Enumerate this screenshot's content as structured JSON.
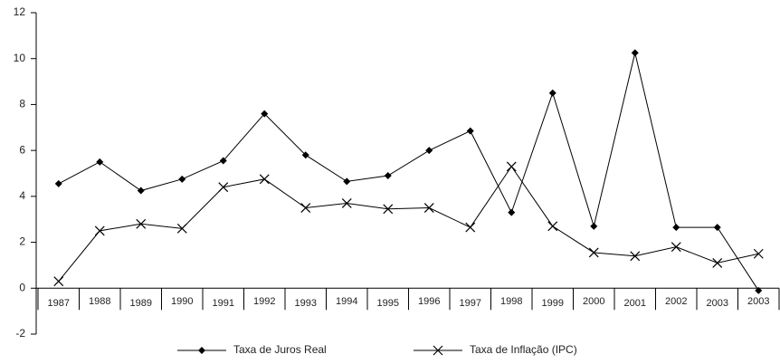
{
  "chart_data": {
    "type": "line",
    "categories": [
      "1987",
      "1988",
      "1989",
      "1990",
      "1991",
      "1992",
      "1993",
      "1994",
      "1995",
      "1996",
      "1997",
      "1998",
      "1999",
      "2000",
      "2001",
      "2002",
      "2003",
      "2003"
    ],
    "series": [
      {
        "name": "Taxa de Juros Real",
        "color": "#000000",
        "marker": "diamond",
        "values": [
          4.55,
          5.5,
          4.25,
          4.75,
          5.55,
          7.6,
          5.8,
          4.65,
          4.9,
          6.0,
          6.85,
          3.3,
          8.5,
          2.7,
          10.25,
          2.65,
          2.65,
          -0.1
        ]
      },
      {
        "name": "Taxa de Inflação (IPC)",
        "color": "#000000",
        "marker": "x",
        "values": [
          0.3,
          2.5,
          2.8,
          2.6,
          4.4,
          4.75,
          3.5,
          3.7,
          3.45,
          3.5,
          2.65,
          5.3,
          2.7,
          1.55,
          1.4,
          1.8,
          1.1,
          1.5
        ]
      }
    ],
    "ylim": [
      -2,
      12
    ],
    "yticks": [
      -2,
      0,
      2,
      4,
      6,
      8,
      10,
      12
    ],
    "grid": false,
    "legend": "bottom"
  }
}
